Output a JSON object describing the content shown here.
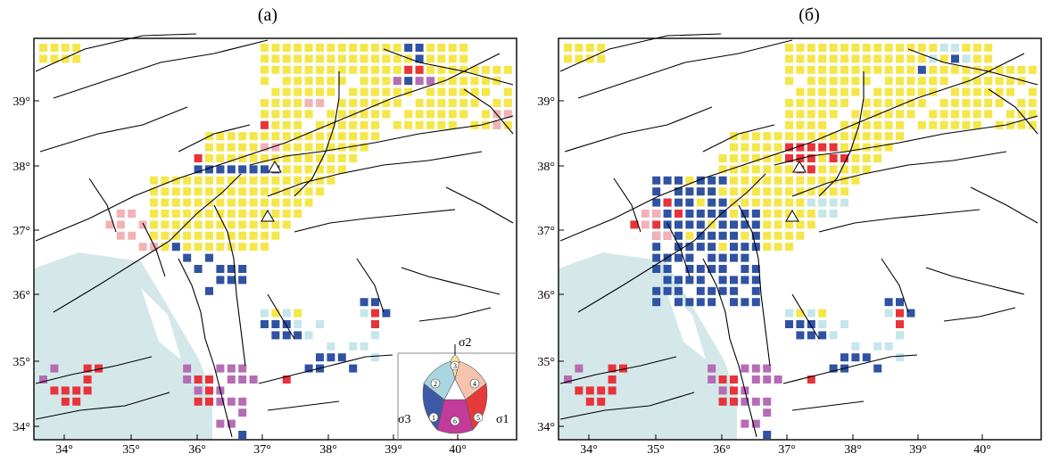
{
  "panels": [
    {
      "id": "a",
      "label": "(а)"
    },
    {
      "id": "b",
      "label": "(б)"
    }
  ],
  "axes": {
    "lon_ticks": [
      "34°",
      "35°",
      "36°",
      "37°",
      "38°",
      "39°",
      "40°"
    ],
    "lat_ticks": [
      "34°",
      "35°",
      "36°",
      "37°",
      "38°",
      "39°"
    ]
  },
  "legend": {
    "top_label": "σ2",
    "left_label": "σ3",
    "right_label": "σ1",
    "sectors": [
      {
        "number": "1",
        "color": "#3d5aa8"
      },
      {
        "number": "2",
        "color": "#a9d6e0"
      },
      {
        "number": "3",
        "color": "#f7e89a"
      },
      {
        "number": "4",
        "color": "#f5c3ae"
      },
      {
        "number": "5",
        "color": "#e63a3a"
      },
      {
        "number": "6",
        "color": "#c23a9a"
      }
    ]
  },
  "colors": {
    "yellow": "#f5e64a",
    "blue": "#2f52a3",
    "lightblue": "#c5e6ea",
    "pink": "#f3b3b6",
    "red": "#e8333b",
    "purple": "#b56cb4",
    "sea": "#d4e8e9"
  }
}
